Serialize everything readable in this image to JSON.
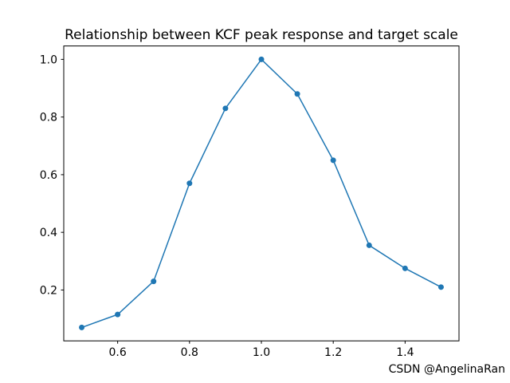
{
  "figure": {
    "background": "#ffffff",
    "spine_color": "#000000",
    "tick_color": "#000000"
  },
  "watermark": {
    "text": "CSDN @AngelinaRan",
    "color": "#999999"
  },
  "chart_data": {
    "type": "line",
    "title": "Relationship between KCF peak response and target scale",
    "xlabel": "",
    "ylabel": "",
    "x": [
      0.5,
      0.6,
      0.7,
      0.8,
      0.9,
      1.0,
      1.1,
      1.2,
      1.3,
      1.4,
      1.5
    ],
    "y": [
      0.07,
      0.115,
      0.23,
      0.57,
      0.83,
      1.0,
      0.88,
      0.65,
      0.355,
      0.275,
      0.21
    ],
    "series_name": "KCF peak response",
    "line_color": "#1f77b4",
    "marker": "o",
    "marker_color": "#1f77b4",
    "xlim": [
      0.45,
      1.55
    ],
    "ylim": [
      0.0235,
      1.0465
    ],
    "xticks": [
      0.6,
      0.8,
      1.0,
      1.2,
      1.4
    ],
    "yticks": [
      0.2,
      0.4,
      0.6,
      0.8,
      1.0
    ],
    "grid": false,
    "legend": false
  }
}
